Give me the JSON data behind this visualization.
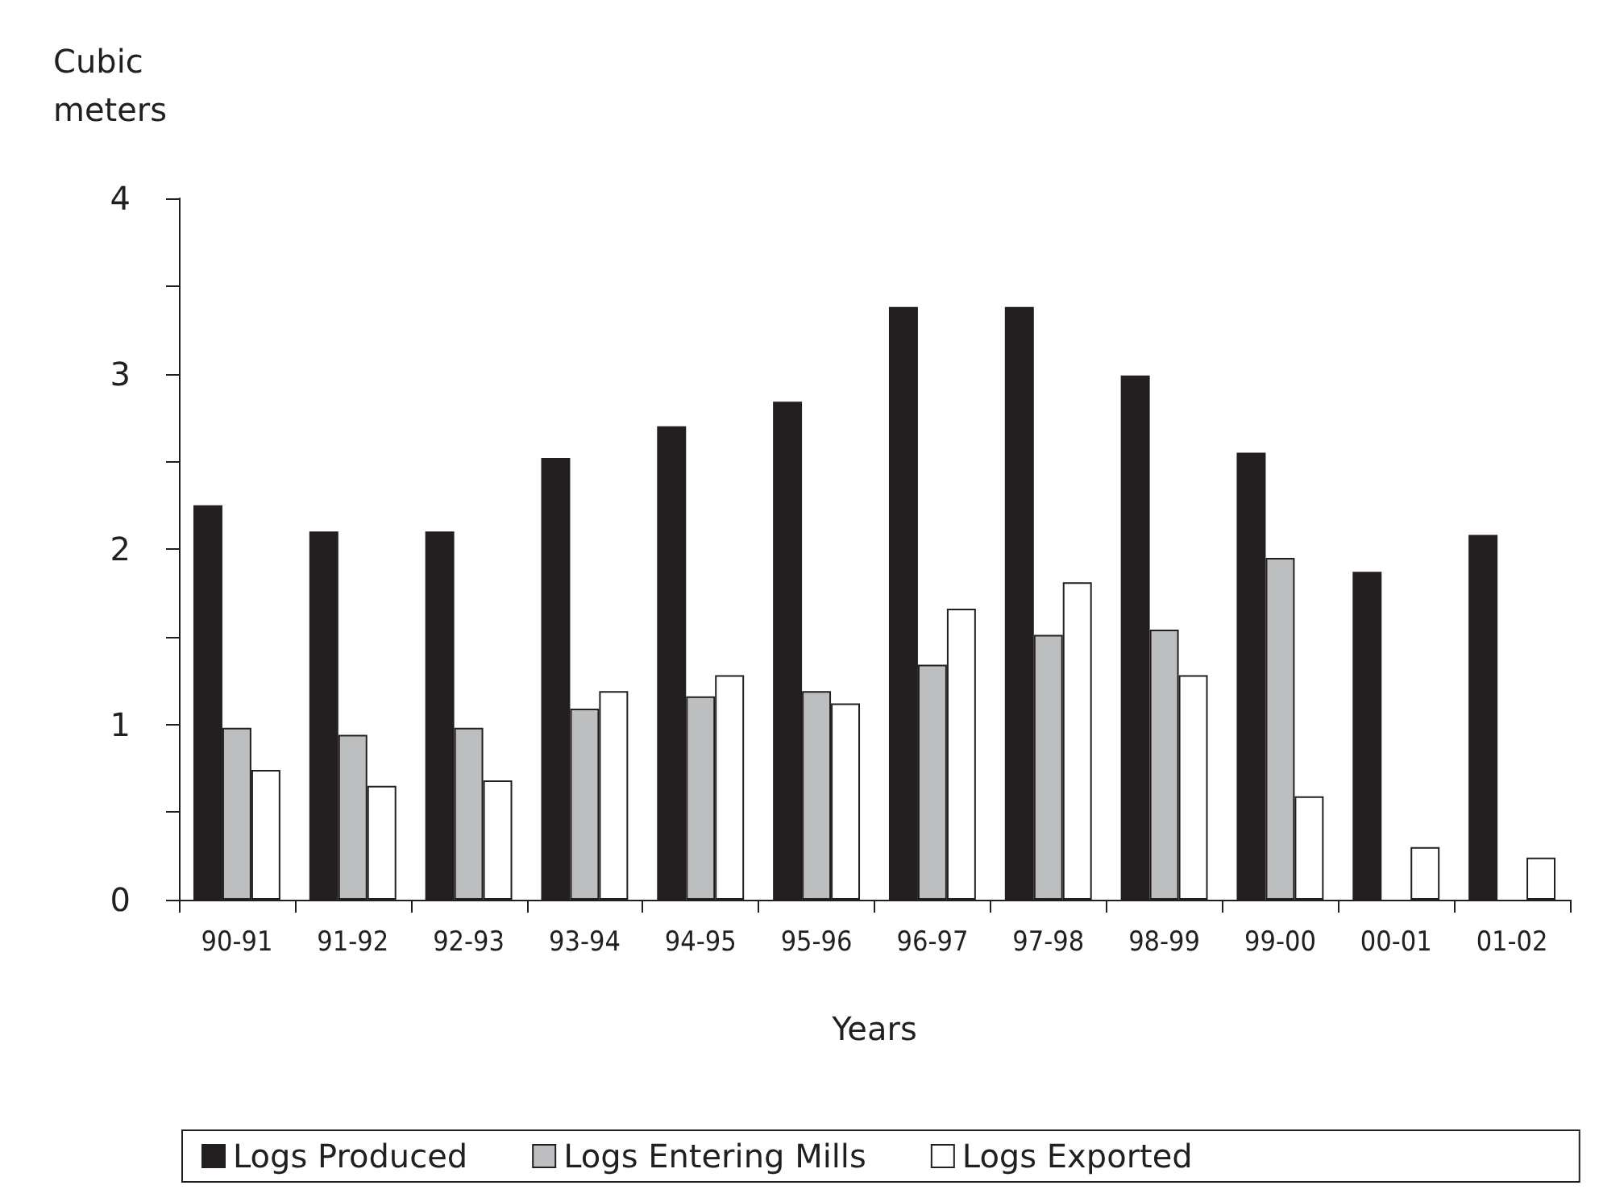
{
  "chart_data": {
    "type": "bar",
    "xlabel": "Years",
    "ylabel": "Cubic\nmeters",
    "categories": [
      "90-91",
      "91-92",
      "92-93",
      "93-94",
      "94-95",
      "95-96",
      "96-97",
      "97-98",
      "98-99",
      "99-00",
      "00-01",
      "01-02"
    ],
    "series": [
      {
        "name": "Logs Produced",
        "color": "#231f20",
        "values": [
          2.25,
          2.1,
          2.1,
          2.52,
          2.7,
          2.84,
          3.38,
          3.38,
          2.99,
          2.55,
          1.87,
          2.08
        ]
      },
      {
        "name": "Logs Entering Mills",
        "color": "#bcbec0",
        "values": [
          0.98,
          0.94,
          0.98,
          1.09,
          1.16,
          1.19,
          1.34,
          1.51,
          1.54,
          1.95,
          null,
          null
        ]
      },
      {
        "name": "Logs Exported",
        "color": "#ffffff",
        "values": [
          0.74,
          0.65,
          0.68,
          1.19,
          1.28,
          1.12,
          1.66,
          1.81,
          1.28,
          0.59,
          0.3,
          0.24
        ]
      }
    ],
    "ylim": [
      0,
      4
    ],
    "yticks": [
      0,
      {
        "value": 0.5,
        "label": null
      },
      1,
      {
        "value": 1.5,
        "label": null
      },
      2,
      {
        "value": 2.5,
        "label": null
      },
      3,
      {
        "value": 3.5,
        "label": null
      },
      4
    ],
    "grid": false,
    "legend": "bottom"
  }
}
